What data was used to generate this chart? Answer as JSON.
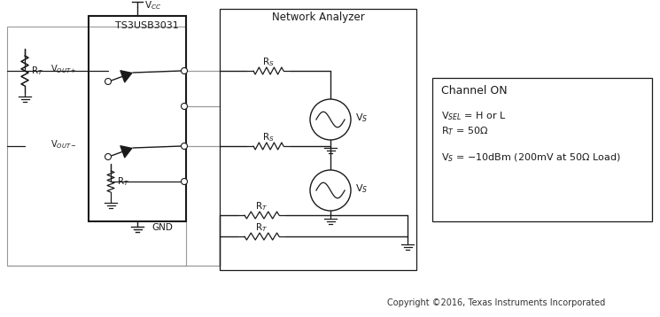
{
  "fig_width": 7.45,
  "fig_height": 3.58,
  "bg_color": "#ffffff",
  "line_color": "#1a1a1a",
  "gray_line_color": "#999999",
  "title": "Network Analyzer",
  "chip_label": "TS3USB3031",
  "vcc_label": "V$_{CC}$",
  "gnd_label": "GND",
  "vout_plus": "V$_{OUT+}$",
  "vout_minus": "V$_{OUT-}$",
  "rs_label": "R$_S$",
  "rt_label": "R$_T$",
  "vs_label": "V$_S$",
  "info_box_title": "Channel ON",
  "info_line1": "V$_{SEL}$ = H or L",
  "info_line2": "R$_T$ = 50Ω",
  "info_line3": "V$_S$ = −10dBm (200mV at 50Ω Load)",
  "copyright": "Copyright ©2016, Texas Instruments Incorporated"
}
